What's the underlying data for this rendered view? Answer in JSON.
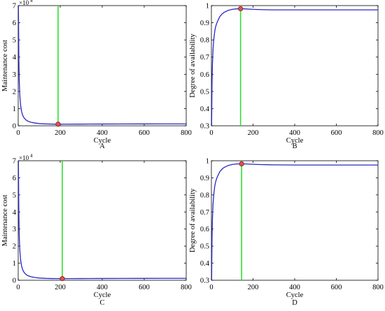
{
  "chart_data": [
    {
      "type": "line",
      "panel_label": "A",
      "xlabel": "Cycle",
      "ylabel": "Maintenance cost",
      "xlim": [
        0,
        800
      ],
      "ylim": [
        0,
        7
      ],
      "y_multiplier": "×10",
      "y_multiplier_exp": "4",
      "x_ticks": [
        "0",
        "200",
        "400",
        "600",
        "800"
      ],
      "y_ticks": [
        "0",
        "1",
        "2",
        "3",
        "4",
        "5",
        "6",
        "7"
      ],
      "series": [
        {
          "color": "#2828c8",
          "x": [
            1,
            3,
            5,
            8,
            12,
            16,
            20,
            25,
            30,
            40,
            50,
            60,
            80,
            100,
            130,
            160,
            190,
            220,
            300,
            400,
            500,
            600,
            700,
            800
          ],
          "values": [
            7.0,
            4.0,
            2.6,
            1.7,
            1.15,
            0.85,
            0.66,
            0.52,
            0.43,
            0.31,
            0.25,
            0.21,
            0.16,
            0.13,
            0.11,
            0.1,
            0.095,
            0.097,
            0.1,
            0.105,
            0.108,
            0.11,
            0.112,
            0.113
          ]
        }
      ],
      "vline_x": 190,
      "optimum": {
        "x": 190,
        "y": 0.095
      },
      "vline_color": "#33dd33",
      "marker_color": "#e05050"
    },
    {
      "type": "line",
      "panel_label": "B",
      "xlabel": "Cycle",
      "ylabel": "Degree of availability",
      "xlim": [
        0,
        800
      ],
      "ylim": [
        0.3,
        1.0
      ],
      "x_ticks": [
        "0",
        "200",
        "400",
        "600",
        "800"
      ],
      "y_ticks": [
        "0.3",
        "0.4",
        "0.5",
        "0.6",
        "0.7",
        "0.8",
        "0.9",
        "1"
      ],
      "series": [
        {
          "color": "#2828c8",
          "x": [
            1,
            3,
            5,
            8,
            12,
            16,
            20,
            25,
            30,
            40,
            50,
            60,
            80,
            100,
            120,
            140,
            160,
            200,
            250,
            300,
            400,
            500,
            600,
            700,
            800
          ],
          "values": [
            0.3,
            0.55,
            0.66,
            0.75,
            0.81,
            0.85,
            0.875,
            0.895,
            0.91,
            0.935,
            0.95,
            0.96,
            0.972,
            0.978,
            0.981,
            0.982,
            0.981,
            0.978,
            0.976,
            0.975,
            0.975,
            0.975,
            0.975,
            0.975,
            0.975
          ]
        }
      ],
      "vline_x": 140,
      "optimum": {
        "x": 140,
        "y": 0.982
      },
      "vline_color": "#33dd33",
      "marker_color": "#e05050"
    },
    {
      "type": "line",
      "panel_label": "C",
      "xlabel": "Cycle",
      "ylabel": "Maintenance cost",
      "xlim": [
        0,
        800
      ],
      "ylim": [
        0,
        7
      ],
      "y_multiplier": "×10",
      "y_multiplier_exp": "4",
      "x_ticks": [
        "0",
        "200",
        "400",
        "600",
        "800"
      ],
      "y_ticks": [
        "0",
        "1",
        "2",
        "3",
        "4",
        "5",
        "6",
        "7"
      ],
      "series": [
        {
          "color": "#2828c8",
          "x": [
            1,
            3,
            5,
            8,
            12,
            16,
            20,
            25,
            30,
            40,
            50,
            60,
            80,
            100,
            130,
            160,
            190,
            210,
            240,
            300,
            400,
            500,
            600,
            700,
            800
          ],
          "values": [
            7.0,
            4.0,
            2.6,
            1.7,
            1.15,
            0.85,
            0.66,
            0.52,
            0.43,
            0.31,
            0.25,
            0.21,
            0.16,
            0.13,
            0.11,
            0.1,
            0.096,
            0.094,
            0.096,
            0.1,
            0.105,
            0.108,
            0.11,
            0.112,
            0.113
          ]
        }
      ],
      "vline_x": 210,
      "optimum": {
        "x": 210,
        "y": 0.094
      },
      "vline_color": "#33dd33",
      "marker_color": "#e05050"
    },
    {
      "type": "line",
      "panel_label": "D",
      "xlabel": "Cycle",
      "ylabel": "Degree of availability",
      "xlim": [
        0,
        800
      ],
      "ylim": [
        0.3,
        1.0
      ],
      "x_ticks": [
        "0",
        "200",
        "400",
        "600",
        "800"
      ],
      "y_ticks": [
        "0.3",
        "0.4",
        "0.5",
        "0.6",
        "0.7",
        "0.8",
        "0.9",
        "1"
      ],
      "series": [
        {
          "color": "#2828c8",
          "x": [
            1,
            3,
            5,
            8,
            12,
            16,
            20,
            25,
            30,
            40,
            50,
            60,
            80,
            100,
            120,
            145,
            170,
            200,
            250,
            300,
            400,
            500,
            600,
            700,
            800
          ],
          "values": [
            0.3,
            0.55,
            0.66,
            0.75,
            0.81,
            0.85,
            0.875,
            0.895,
            0.91,
            0.935,
            0.95,
            0.96,
            0.972,
            0.978,
            0.981,
            0.982,
            0.981,
            0.979,
            0.977,
            0.976,
            0.975,
            0.975,
            0.975,
            0.975,
            0.975
          ]
        }
      ],
      "vline_x": 145,
      "optimum": {
        "x": 145,
        "y": 0.982
      },
      "vline_color": "#33dd33",
      "marker_color": "#e05050"
    }
  ]
}
